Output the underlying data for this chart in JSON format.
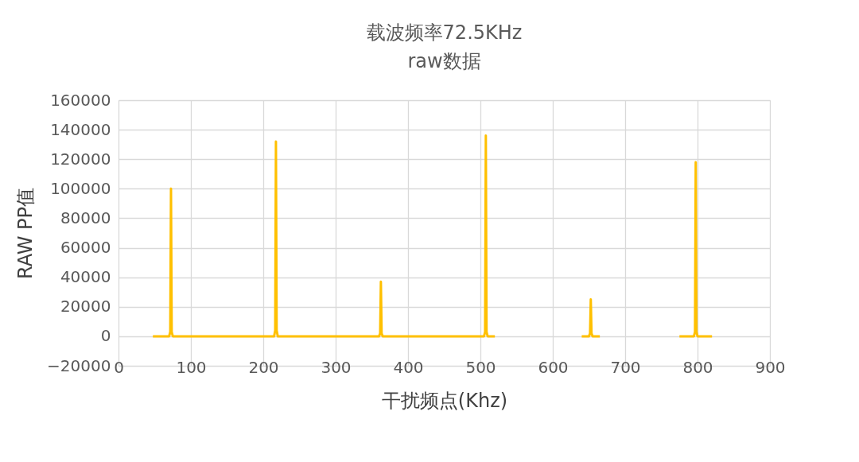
{
  "chart_data": {
    "type": "line",
    "title": "载波频率72.5KHz",
    "subtitle": "raw数据",
    "xlabel": "干扰频点(Khz)",
    "ylabel": "RAW PP值",
    "series": [
      {
        "color": "#ffc000",
        "x": [
          47.5,
          70,
          71.5,
          72.5,
          73.5,
          75,
          215,
          216.5,
          217.5,
          218.5,
          220,
          360,
          361.5,
          362.5,
          363.5,
          365,
          505,
          506.5,
          507.5,
          508.5,
          510,
          520,
          580,
          640,
          650,
          651.5,
          652.5,
          653.5,
          655,
          665,
          720,
          775,
          795,
          796.5,
          797.5,
          798.5,
          800,
          820
        ],
        "values": [
          0,
          0,
          3000,
          100000,
          3000,
          0,
          0,
          4000,
          132000,
          4000,
          0,
          0,
          2000,
          37000,
          2000,
          0,
          0,
          3000,
          136000,
          3000,
          0,
          0,
          null,
          0,
          0,
          2000,
          25000,
          2000,
          0,
          0,
          null,
          0,
          0,
          3000,
          118000,
          3000,
          0,
          0
        ]
      }
    ],
    "xlim": [
      0,
      900
    ],
    "xticks": [
      0,
      100,
      200,
      300,
      400,
      500,
      600,
      700,
      800,
      900
    ],
    "ylim": [
      -20000,
      160000
    ],
    "yticks": [
      -20000,
      0,
      20000,
      40000,
      60000,
      80000,
      100000,
      120000,
      140000,
      160000
    ],
    "grid": true,
    "marker": "none",
    "line_style": "solid"
  }
}
